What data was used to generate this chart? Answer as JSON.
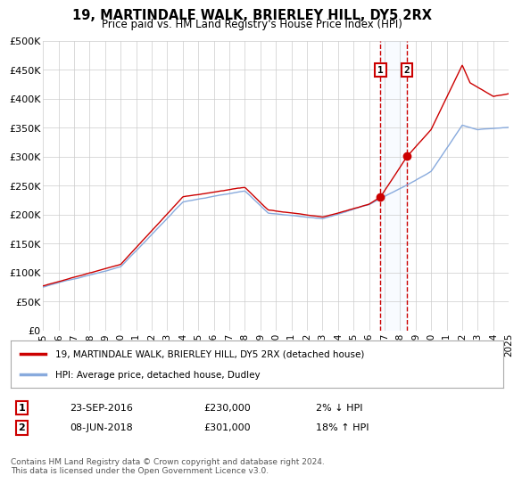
{
  "title": "19, MARTINDALE WALK, BRIERLEY HILL, DY5 2RX",
  "subtitle": "Price paid vs. HM Land Registry's House Price Index (HPI)",
  "line1_label": "19, MARTINDALE WALK, BRIERLEY HILL, DY5 2RX (detached house)",
  "line2_label": "HPI: Average price, detached house, Dudley",
  "sale1_date": "23-SEP-2016",
  "sale1_price": 230000,
  "sale1_pct": "2% ↓ HPI",
  "sale1_year": 2016.73,
  "sale2_date": "08-JUN-2018",
  "sale2_price": 301000,
  "sale2_pct": "18% ↑ HPI",
  "sale2_year": 2018.44,
  "ylim": [
    0,
    500000
  ],
  "xlim": [
    1995,
    2025
  ],
  "yticks": [
    0,
    50000,
    100000,
    150000,
    200000,
    250000,
    300000,
    350000,
    400000,
    450000,
    500000
  ],
  "ylabel_fmt": [
    "£0",
    "£50K",
    "£100K",
    "£150K",
    "£200K",
    "£250K",
    "£300K",
    "£350K",
    "£400K",
    "£450K",
    "£500K"
  ],
  "xticks": [
    1995,
    1996,
    1997,
    1998,
    1999,
    2000,
    2001,
    2002,
    2003,
    2004,
    2005,
    2006,
    2007,
    2008,
    2009,
    2010,
    2011,
    2012,
    2013,
    2014,
    2015,
    2016,
    2017,
    2018,
    2019,
    2020,
    2021,
    2022,
    2023,
    2024,
    2025
  ],
  "line_color_red": "#cc0000",
  "line_color_blue": "#88aadd",
  "background_color": "#ffffff",
  "grid_color": "#cccccc",
  "shade_color": "#ddeeff",
  "footnote": "Contains HM Land Registry data © Crown copyright and database right 2024.\nThis data is licensed under the Open Government Licence v3.0."
}
